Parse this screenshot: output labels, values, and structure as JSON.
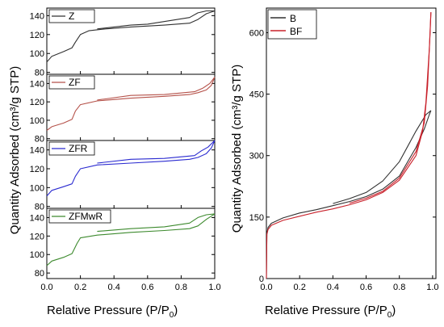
{
  "figure": {
    "left_ylabel": "Quantity Adsorbed (cm³/g STP)",
    "left_xlabel": "Relative Pressure (P/P",
    "left_xlabel_sub": "0",
    "left_xlabel_end": ")",
    "right_ylabel": "Quantity Adsorbed (cm³/g STP)",
    "right_xlabel": "Relative Pressure (P/P",
    "right_xlabel_sub": "0",
    "right_xlabel_end": ")"
  },
  "chart_data": [
    {
      "type": "line",
      "panel": "Z",
      "color": "#303030",
      "xlim": [
        0,
        1
      ],
      "ylim": [
        78,
        148
      ],
      "yticks": [
        "80",
        "100",
        "120",
        "140"
      ],
      "xticks": [],
      "legend": "top-left",
      "series": [
        {
          "name": "Z",
          "role": "adsorption",
          "x": [
            0,
            0.03,
            0.1,
            0.15,
            0.17,
            0.2,
            0.25,
            0.35,
            0.5,
            0.7,
            0.85,
            0.9,
            0.95,
            1.0
          ],
          "y": [
            91,
            97,
            102,
            106,
            112,
            120,
            124,
            126,
            128,
            130,
            132,
            136,
            142,
            145
          ]
        },
        {
          "name": "",
          "role": "desorption",
          "x": [
            1.0,
            0.95,
            0.9,
            0.85,
            0.6,
            0.5,
            0.3
          ],
          "y": [
            145,
            145,
            143,
            138,
            131,
            130,
            126
          ]
        }
      ]
    },
    {
      "type": "line",
      "panel": "ZF",
      "color": "#b5524a",
      "xlim": [
        0,
        1
      ],
      "ylim": [
        78,
        150
      ],
      "yticks": [
        "80",
        "100",
        "120",
        "140"
      ],
      "xticks": [],
      "legend": "top-left",
      "series": [
        {
          "name": "ZF",
          "role": "adsorption",
          "x": [
            0,
            0.03,
            0.1,
            0.15,
            0.17,
            0.2,
            0.3,
            0.5,
            0.7,
            0.85,
            0.9,
            0.95,
            0.98,
            1.0
          ],
          "y": [
            89,
            93,
            97,
            101,
            110,
            117,
            121,
            124,
            126,
            128,
            130,
            133,
            138,
            147
          ]
        },
        {
          "name": "",
          "role": "desorption",
          "x": [
            1.0,
            0.97,
            0.93,
            0.88,
            0.7,
            0.5,
            0.3
          ],
          "y": [
            147,
            140,
            135,
            131,
            128,
            127,
            122
          ]
        }
      ]
    },
    {
      "type": "line",
      "panel": "ZFR",
      "color": "#2a2ad0",
      "xlim": [
        0,
        1
      ],
      "ylim": [
        78,
        150
      ],
      "yticks": [
        "80",
        "100",
        "120",
        "140"
      ],
      "xticks": [],
      "legend": "top-left",
      "series": [
        {
          "name": "ZFR",
          "role": "adsorption",
          "x": [
            0,
            0.03,
            0.1,
            0.15,
            0.17,
            0.2,
            0.3,
            0.5,
            0.7,
            0.85,
            0.9,
            0.95,
            0.98,
            1.0
          ],
          "y": [
            91,
            97,
            101,
            104,
            112,
            120,
            124,
            126,
            128,
            130,
            132,
            136,
            142,
            150
          ]
        },
        {
          "name": "",
          "role": "desorption",
          "x": [
            1.0,
            0.96,
            0.92,
            0.88,
            0.7,
            0.5,
            0.3
          ],
          "y": [
            150,
            143,
            139,
            134,
            131,
            130,
            126
          ]
        }
      ]
    },
    {
      "type": "line",
      "panel": "ZFMwR",
      "color": "#3d8a2e",
      "xlim": [
        0,
        1
      ],
      "ylim": [
        74,
        150
      ],
      "yticks": [
        "80",
        "100",
        "120",
        "140"
      ],
      "xticks": [
        "0.0",
        "0.2",
        "0.4",
        "0.6",
        "0.8",
        "1.0"
      ],
      "legend": "top-left",
      "series": [
        {
          "name": "ZFMwR",
          "role": "adsorption",
          "x": [
            0,
            0.03,
            0.1,
            0.15,
            0.18,
            0.2,
            0.3,
            0.5,
            0.7,
            0.85,
            0.9,
            0.95,
            1.0
          ],
          "y": [
            88,
            93,
            97,
            101,
            112,
            118,
            121,
            124,
            126,
            128,
            131,
            138,
            144
          ]
        },
        {
          "name": "",
          "role": "desorption",
          "x": [
            1.0,
            0.95,
            0.9,
            0.85,
            0.7,
            0.5,
            0.3
          ],
          "y": [
            144,
            143,
            140,
            134,
            130,
            128,
            125
          ]
        }
      ]
    },
    {
      "type": "line",
      "panel": "B/BF",
      "xlim": [
        0,
        1.02
      ],
      "ylim": [
        0,
        660
      ],
      "yticks": [
        "0",
        "150",
        "300",
        "450",
        "600"
      ],
      "xticks": [
        "0.0",
        "0.2",
        "0.4",
        "0.6",
        "0.8",
        "1.0"
      ],
      "legend": "top-left",
      "series": [
        {
          "name": "B",
          "color": "#303030",
          "role": "adsorption",
          "x": [
            0,
            0.003,
            0.01,
            0.03,
            0.1,
            0.2,
            0.3,
            0.4,
            0.5,
            0.6,
            0.7,
            0.8,
            0.9,
            0.95,
            0.98,
            0.99
          ],
          "y": [
            0,
            110,
            125,
            135,
            148,
            160,
            168,
            178,
            188,
            200,
            218,
            250,
            320,
            365,
            400,
            410
          ]
        },
        {
          "name": "",
          "color": "#303030",
          "role": "desorption",
          "x": [
            0.99,
            0.96,
            0.9,
            0.8,
            0.7,
            0.6,
            0.5,
            0.4
          ],
          "y": [
            410,
            400,
            360,
            285,
            238,
            210,
            195,
            183
          ]
        },
        {
          "name": "BF",
          "color": "#c8202a",
          "role": "adsorption",
          "x": [
            0,
            0.003,
            0.01,
            0.03,
            0.1,
            0.2,
            0.3,
            0.4,
            0.5,
            0.6,
            0.7,
            0.8,
            0.9,
            0.94,
            0.96,
            0.98,
            0.99
          ],
          "y": [
            0,
            108,
            120,
            130,
            142,
            152,
            162,
            170,
            180,
            192,
            210,
            240,
            300,
            360,
            430,
            560,
            650
          ]
        },
        {
          "name": "",
          "color": "#c8202a",
          "role": "desorption",
          "x": [
            0.99,
            0.985,
            0.97,
            0.95,
            0.9,
            0.8,
            0.7,
            0.6,
            0.5
          ],
          "y": [
            650,
            600,
            470,
            380,
            310,
            245,
            213,
            196,
            184
          ]
        }
      ]
    }
  ]
}
